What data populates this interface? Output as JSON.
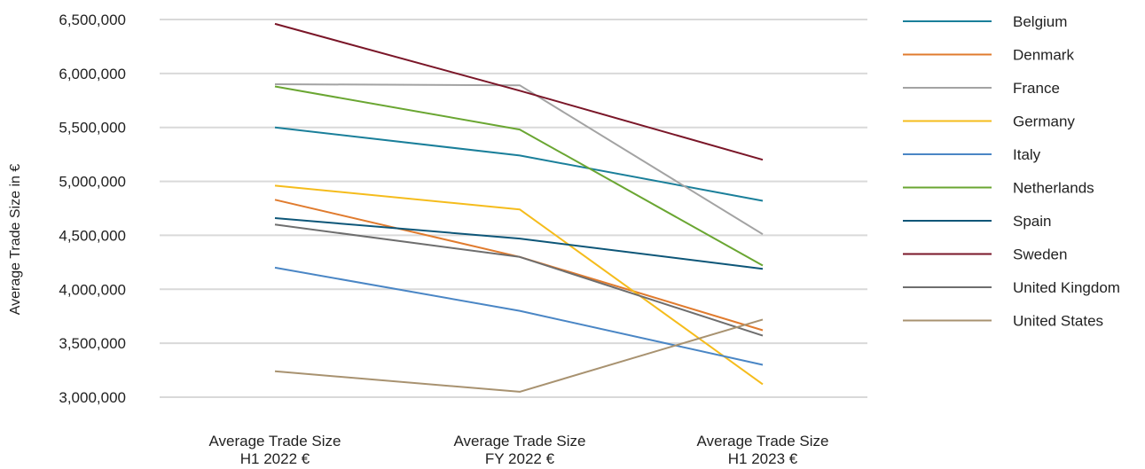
{
  "chart_data": {
    "type": "line",
    "title": "",
    "ylabel": "Average Trade Size in €",
    "xlabel": "",
    "ylim": [
      3000000,
      6500000
    ],
    "yticks": [
      3000000,
      3500000,
      4000000,
      4500000,
      5000000,
      5500000,
      6000000,
      6500000
    ],
    "ytick_labels": [
      "3,000,000",
      "3,500,000",
      "4,000,000",
      "4,500,000",
      "5,000,000",
      "5,500,000",
      "6,000,000",
      "6,500,000"
    ],
    "categories": [
      [
        "Average Trade Size",
        "H1 2022 €"
      ],
      [
        "Average Trade Size",
        "FY 2022 €"
      ],
      [
        "Average Trade Size",
        "H1 2023 €"
      ]
    ],
    "grid": true,
    "legend_position": "right",
    "series": [
      {
        "name": "Belgium",
        "color": "#1a7f9a",
        "values": [
          5500000,
          5240000,
          4820000
        ]
      },
      {
        "name": "Denmark",
        "color": "#e07b2e",
        "values": [
          4830000,
          4300000,
          3620000
        ]
      },
      {
        "name": "France",
        "color": "#a3a3a3",
        "values": [
          5900000,
          5890000,
          4510000
        ]
      },
      {
        "name": "Germany",
        "color": "#f5bc1c",
        "values": [
          4960000,
          4740000,
          3120000
        ]
      },
      {
        "name": "Italy",
        "color": "#4a86c5",
        "values": [
          4200000,
          3800000,
          3300000
        ]
      },
      {
        "name": "Netherlands",
        "color": "#6aa632",
        "values": [
          5880000,
          5480000,
          4220000
        ]
      },
      {
        "name": "Spain",
        "color": "#0d5678",
        "values": [
          4660000,
          4470000,
          4190000
        ]
      },
      {
        "name": "Sweden",
        "color": "#7a1628",
        "values": [
          6460000,
          5840000,
          5200000
        ]
      },
      {
        "name": "United Kingdom",
        "color": "#6e6e6e",
        "values": [
          4600000,
          4300000,
          3570000
        ]
      },
      {
        "name": "United States",
        "color": "#a89270",
        "values": [
          3240000,
          3050000,
          3720000
        ]
      }
    ]
  }
}
